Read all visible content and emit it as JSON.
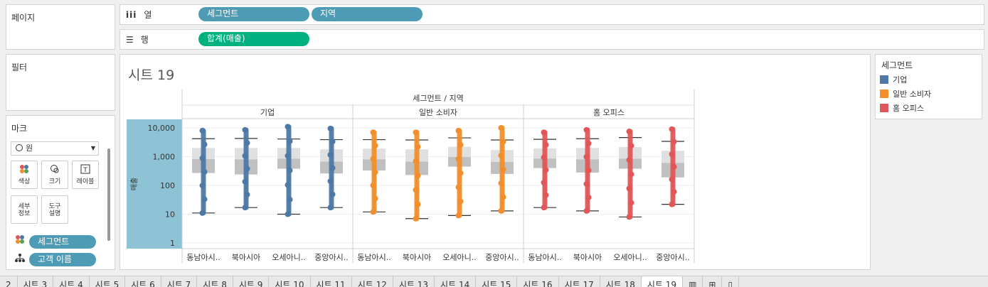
{
  "left": {
    "pages_title": "페이지",
    "filters_title": "필터",
    "marks_title": "마크",
    "mark_type": "원",
    "mark_buttons": [
      {
        "label": "색상",
        "icon": "color-icon"
      },
      {
        "label": "크기",
        "icon": "size-icon"
      },
      {
        "label": "레이블",
        "icon": "label-icon"
      },
      {
        "label": "세부\n정보",
        "icon": "detail-icon"
      },
      {
        "label": "도구\n설명",
        "icon": "tooltip-icon"
      }
    ],
    "mark_fields": [
      {
        "label": "세그먼트",
        "icon": "color-icon"
      },
      {
        "label": "고객 이름",
        "icon": "detail-icon"
      }
    ]
  },
  "shelves": {
    "columns_label": "열",
    "rows_label": "행",
    "columns_pills": [
      "세그먼트",
      "지역"
    ],
    "rows_pills": [
      "합계(매출)"
    ]
  },
  "sheet": {
    "title": "시트 19",
    "header": "세그먼트 / 지역",
    "y_axis_label": "매출"
  },
  "legend": {
    "title": "세그먼트",
    "items": [
      {
        "label": "기업",
        "color": "#4e79a7"
      },
      {
        "label": "일반 소비자",
        "color": "#f28e2b"
      },
      {
        "label": "홈 오피스",
        "color": "#e15759"
      }
    ]
  },
  "chart_data": {
    "type": "scatter",
    "subtype": "box-plot",
    "title": "시트 19",
    "header": "세그먼트 / 지역",
    "ylabel": "매출",
    "yscale": "log",
    "ylim": [
      1,
      10000
    ],
    "yticks": [
      "10,000",
      "1,000",
      "100",
      "10",
      "1"
    ],
    "regions": [
      "동남아시..",
      "북아시아",
      "오세아니..",
      "중앙아시.."
    ],
    "series": [
      {
        "name": "기업",
        "color": "#4e79a7",
        "boxes": [
          {
            "min": 11,
            "q1": 270,
            "median": 820,
            "q3": 2000,
            "max": 4200,
            "outlier_max": 8000
          },
          {
            "min": 17,
            "q1": 240,
            "median": 800,
            "q3": 2000,
            "max": 4300,
            "outlier_max": 8500
          },
          {
            "min": 10,
            "q1": 380,
            "median": 850,
            "q3": 2000,
            "max": 4100,
            "outlier_max": 11000
          },
          {
            "min": 17,
            "q1": 260,
            "median": 670,
            "q3": 1800,
            "max": 3900,
            "outlier_max": 9500
          }
        ]
      },
      {
        "name": "일반 소비자",
        "color": "#f28e2b",
        "boxes": [
          {
            "min": 12,
            "q1": 330,
            "median": 800,
            "q3": 1900,
            "max": 3900,
            "outlier_max": 7000
          },
          {
            "min": 7,
            "q1": 230,
            "median": 670,
            "q3": 1800,
            "max": 3800,
            "outlier_max": 7000
          },
          {
            "min": 9,
            "q1": 450,
            "median": 970,
            "q3": 2200,
            "max": 4500,
            "outlier_max": 8000
          },
          {
            "min": 13,
            "q1": 250,
            "median": 660,
            "q3": 1700,
            "max": 3800,
            "outlier_max": 10000
          }
        ]
      },
      {
        "name": "홈 오피스",
        "color": "#e15759",
        "boxes": [
          {
            "min": 17,
            "q1": 400,
            "median": 860,
            "q3": 1950,
            "max": 4000,
            "outlier_max": 7000
          },
          {
            "min": 13,
            "q1": 280,
            "median": 800,
            "q3": 2000,
            "max": 4200,
            "outlier_max": 8500
          },
          {
            "min": 8,
            "q1": 380,
            "median": 850,
            "q3": 2150,
            "max": 4600,
            "outlier_max": 7500
          },
          {
            "min": 22,
            "q1": 190,
            "median": 600,
            "q3": 1600,
            "max": 3400,
            "outlier_max": 9000
          }
        ]
      }
    ]
  },
  "tabs": [
    "2",
    "시트 3",
    "시트 4",
    "시트 5",
    "시트 6",
    "시트 7",
    "시트 8",
    "시트 9",
    "시트 10",
    "시트 11",
    "시트 12",
    "시트 13",
    "시트 14",
    "시트 15",
    "시트 16",
    "시트 17",
    "시트 18",
    "시트 19"
  ],
  "active_tab": "시트 19"
}
